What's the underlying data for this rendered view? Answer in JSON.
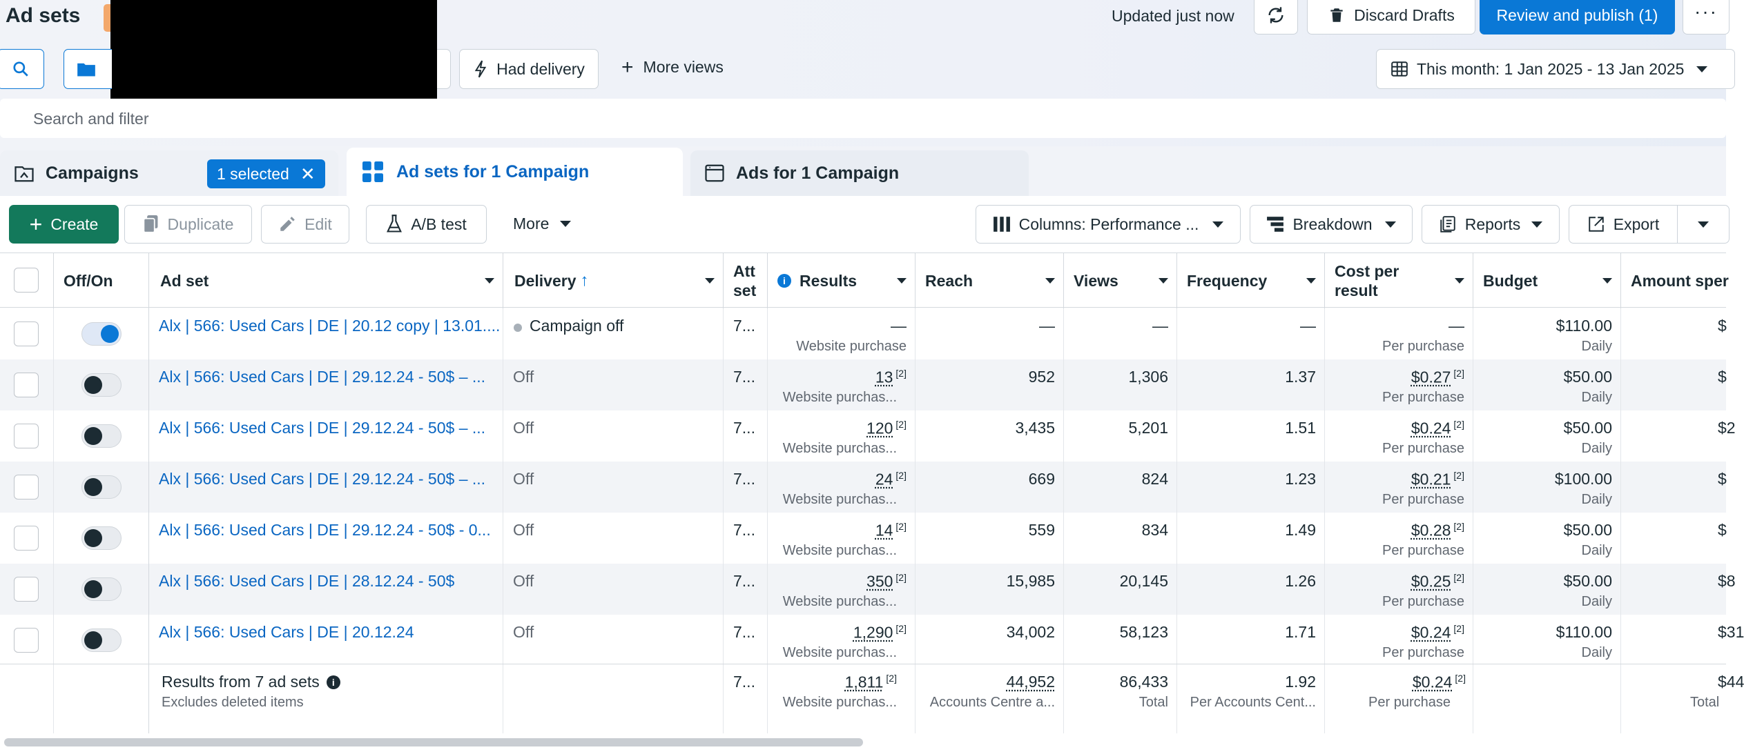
{
  "header": {
    "title": "Ad sets",
    "updated": "Updated just now",
    "discard": "Discard Drafts",
    "publish": "Review and publish (1)"
  },
  "filters": {
    "had_delivery": "Had delivery",
    "more_views": "More views",
    "date_range": "This month: 1 Jan 2025 - 13 Jan 2025",
    "search_placeholder": "Search and filter"
  },
  "tabs": {
    "campaigns": "Campaigns",
    "selected": "1 selected",
    "adsets": "Ad sets for 1 Campaign",
    "ads": "Ads for 1 Campaign"
  },
  "toolbar": {
    "create": "Create",
    "duplicate": "Duplicate",
    "edit": "Edit",
    "ab_test": "A/B test",
    "more": "More",
    "columns": "Columns: Performance ...",
    "breakdown": "Breakdown",
    "reports": "Reports",
    "export": "Export"
  },
  "columns": {
    "offon": "Off/On",
    "adset": "Ad set",
    "delivery": "Delivery",
    "attribution": "Att set",
    "results": "Results",
    "reach": "Reach",
    "views": "Views",
    "frequency": "Frequency",
    "cost_line1": "Cost per",
    "cost_line2": "result",
    "budget": "Budget",
    "amount": "Amount sper"
  },
  "rows": [
    {
      "name": "Alx | 566: Used Cars | DE | 20.12 copy | 13.01....",
      "on": true,
      "delivery": "Campaign off",
      "attr": "7...",
      "results": "—",
      "results_sub": "Website purchase",
      "reach": "—",
      "views": "—",
      "frequency": "—",
      "cost": "—",
      "cost_sub": "Per purchase",
      "budget": "$110.00",
      "budget_sub": "Daily",
      "amount": "$"
    },
    {
      "name": "Alx | 566: Used Cars | DE | 29.12.24 - 50$ – ...",
      "on": false,
      "delivery": "Off",
      "attr": "7...",
      "results": "13",
      "results_sub": "Website purchas...",
      "reach": "952",
      "views": "1,306",
      "frequency": "1.37",
      "cost": "$0.27",
      "cost_sub": "Per purchase",
      "budget": "$50.00",
      "budget_sub": "Daily",
      "amount": "$"
    },
    {
      "name": "Alx | 566: Used Cars | DE | 29.12.24 - 50$ – ...",
      "on": false,
      "delivery": "Off",
      "attr": "7...",
      "results": "120",
      "results_sub": "Website purchas...",
      "reach": "3,435",
      "views": "5,201",
      "frequency": "1.51",
      "cost": "$0.24",
      "cost_sub": "Per purchase",
      "budget": "$50.00",
      "budget_sub": "Daily",
      "amount": "$2"
    },
    {
      "name": "Alx | 566: Used Cars | DE | 29.12.24 - 50$ – ...",
      "on": false,
      "delivery": "Off",
      "attr": "7...",
      "results": "24",
      "results_sub": "Website purchas...",
      "reach": "669",
      "views": "824",
      "frequency": "1.23",
      "cost": "$0.21",
      "cost_sub": "Per purchase",
      "budget": "$100.00",
      "budget_sub": "Daily",
      "amount": "$"
    },
    {
      "name": "Alx | 566: Used Cars | DE | 29.12.24 - 50$ - 0...",
      "on": false,
      "delivery": "Off",
      "attr": "7...",
      "results": "14",
      "results_sub": "Website purchas...",
      "reach": "559",
      "views": "834",
      "frequency": "1.49",
      "cost": "$0.28",
      "cost_sub": "Per purchase",
      "budget": "$50.00",
      "budget_sub": "Daily",
      "amount": "$"
    },
    {
      "name": "Alx | 566: Used Cars | DE | 28.12.24 - 50$",
      "on": false,
      "delivery": "Off",
      "attr": "7...",
      "results": "350",
      "results_sub": "Website purchas...",
      "reach": "15,985",
      "views": "20,145",
      "frequency": "1.26",
      "cost": "$0.25",
      "cost_sub": "Per purchase",
      "budget": "$50.00",
      "budget_sub": "Daily",
      "amount": "$8"
    },
    {
      "name": "Alx | 566: Used Cars | DE | 20.12.24",
      "on": false,
      "delivery": "Off",
      "attr": "7...",
      "results": "1,290",
      "results_sub": "Website purchas...",
      "reach": "34,002",
      "views": "58,123",
      "frequency": "1.71",
      "cost": "$0.24",
      "cost_sub": "Per purchase",
      "budget": "$110.00",
      "budget_sub": "Daily",
      "amount": "$31"
    }
  ],
  "summary": {
    "title": "Results from 7 ad sets",
    "note": "Excludes deleted items",
    "attr": "7...",
    "results": "1,811",
    "results_sub": "Website purchas...",
    "reach": "44,952",
    "reach_sub": "Accounts Centre a...",
    "views": "86,433",
    "views_sub": "Total",
    "frequency": "1.92",
    "frequency_sub": "Per Accounts Cent...",
    "cost": "$0.24",
    "cost_sub": "Per purchase",
    "amount": "$44",
    "amount_sub": "Total"
  },
  "footnote_marker": "[2]",
  "colors": {
    "primary": "#0a78d6",
    "create_green": "#13795b",
    "link": "#0a66c2",
    "row_alt": "#f2f4f7"
  }
}
